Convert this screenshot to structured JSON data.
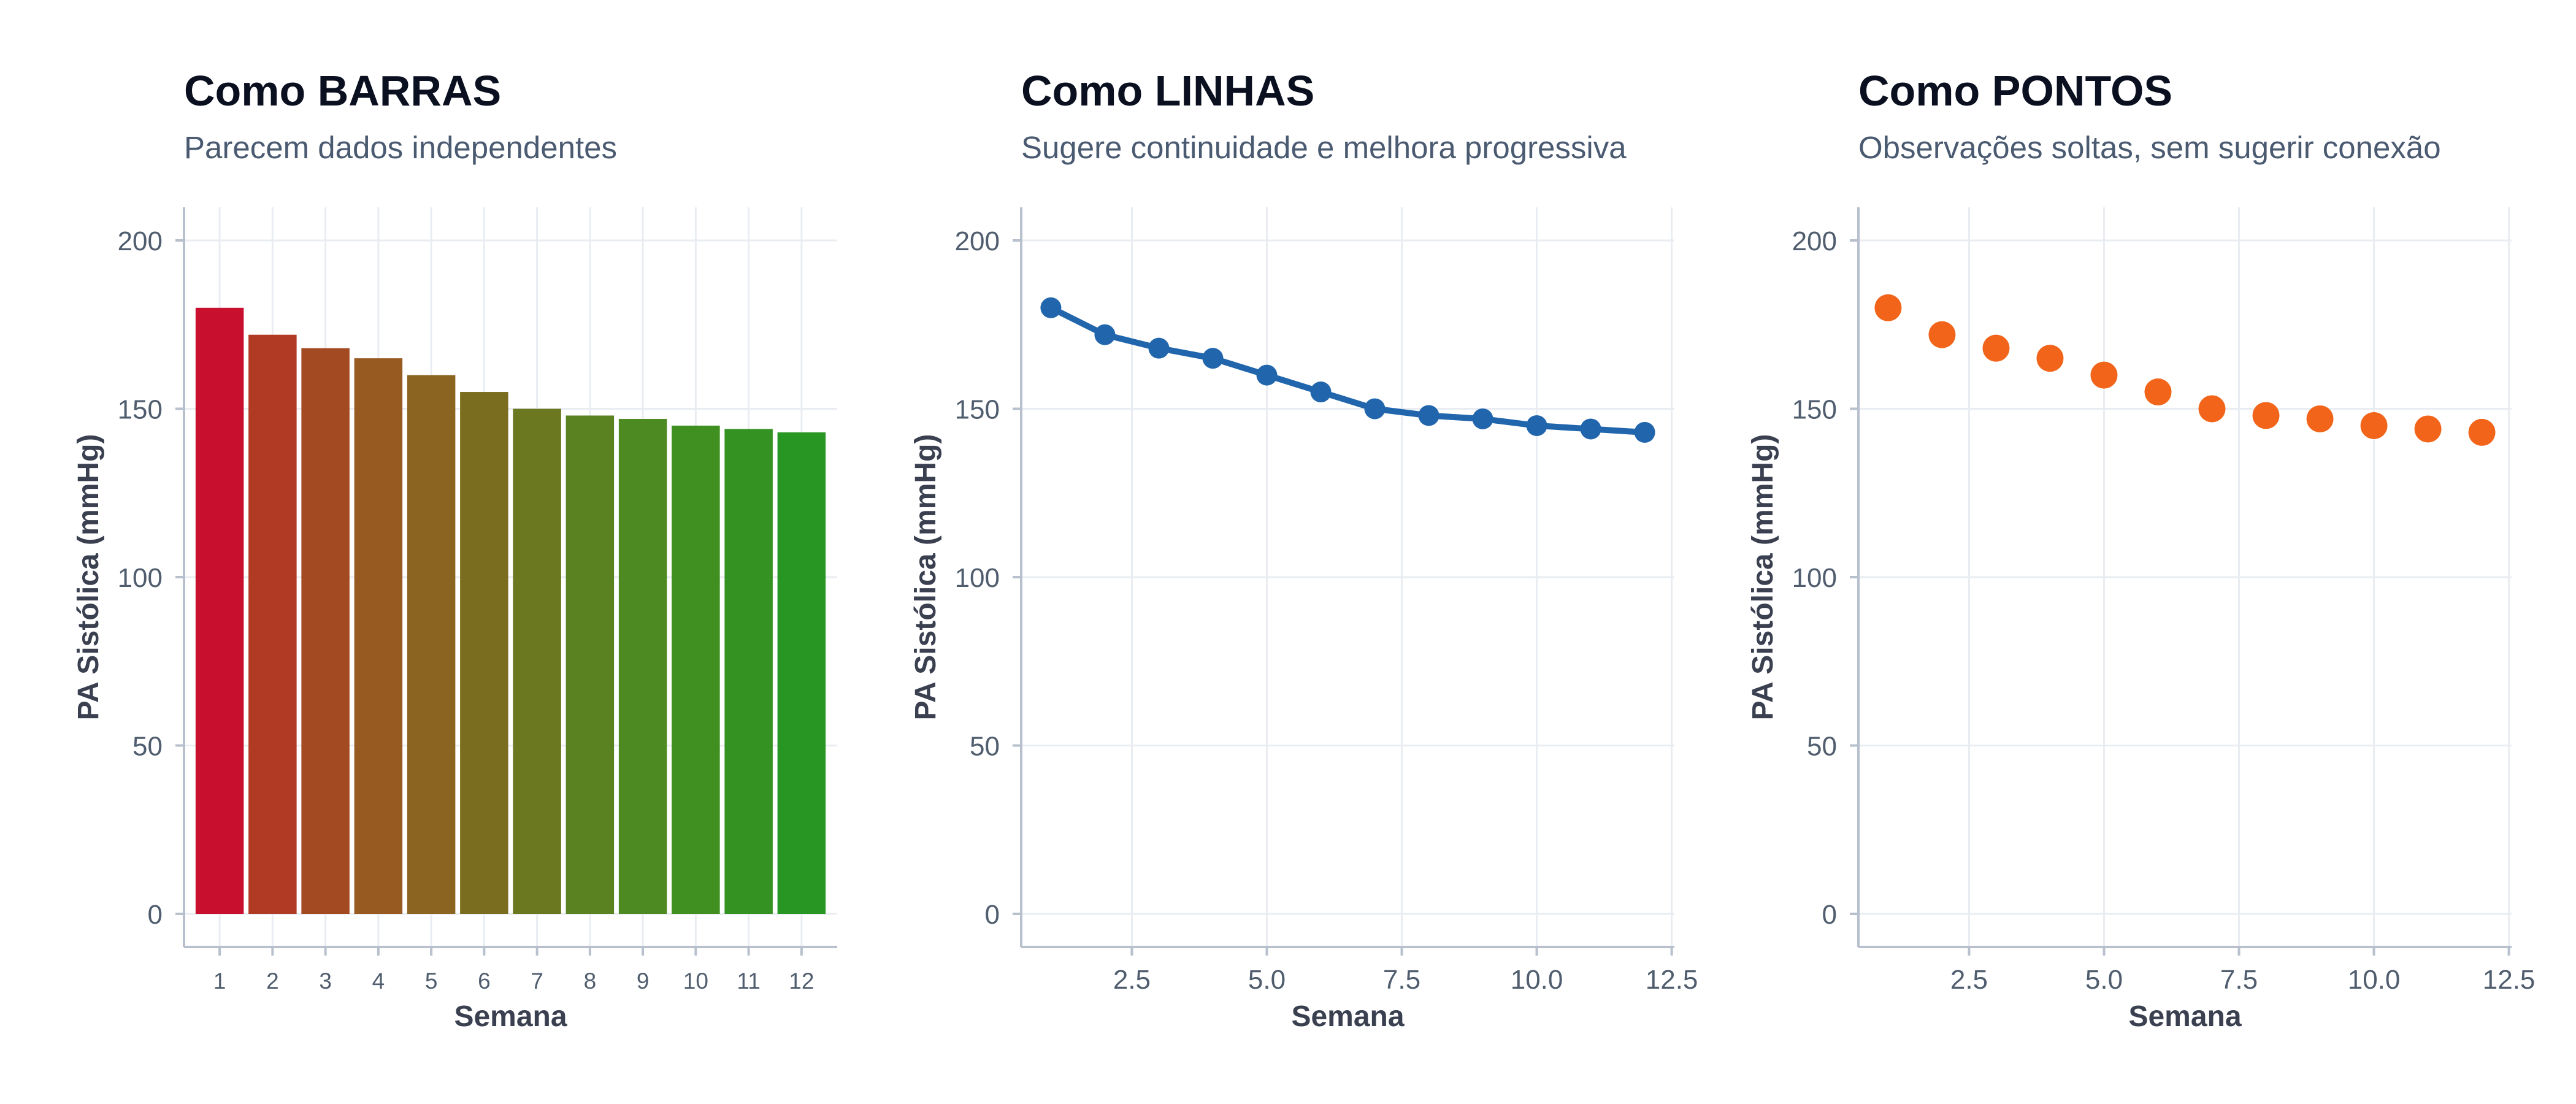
{
  "chart_data": [
    {
      "type": "bar",
      "title": "Como BARRAS",
      "subtitle": "Parecem dados independentes",
      "xlabel": "Semana",
      "ylabel": "PA Sistólica (mmHg)",
      "categories": [
        "1",
        "2",
        "3",
        "4",
        "5",
        "6",
        "7",
        "8",
        "9",
        "10",
        "11",
        "12"
      ],
      "values": [
        180,
        172,
        168,
        165,
        160,
        155,
        150,
        148,
        147,
        145,
        144,
        143
      ],
      "bar_colors": [
        "#c8102e",
        "#b13a24",
        "#a34a22",
        "#975a21",
        "#8a6420",
        "#7a6d20",
        "#6b7820",
        "#5a8220",
        "#4d8a21",
        "#3f8f21",
        "#349222",
        "#279622"
      ],
      "ylim": [
        0,
        210
      ],
      "yticks": [
        0,
        50,
        100,
        150,
        200
      ],
      "grid": true
    },
    {
      "type": "line",
      "title": "Como LINHAS",
      "subtitle": "Sugere continuidade e melhora progressiva",
      "xlabel": "Semana",
      "ylabel": "PA Sistólica (mmHg)",
      "x": [
        1,
        2,
        3,
        4,
        5,
        6,
        7,
        8,
        9,
        10,
        11,
        12
      ],
      "y": [
        180,
        172,
        168,
        165,
        160,
        155,
        150,
        148,
        147,
        145,
        144,
        143
      ],
      "color": "#2166ac",
      "xlim": [
        0.45,
        12.55
      ],
      "ylim": [
        0,
        210
      ],
      "xticks": [
        "2.5",
        "5.0",
        "7.5",
        "10.0",
        "12.5"
      ],
      "yticks": [
        0,
        50,
        100,
        150,
        200
      ],
      "grid": true
    },
    {
      "type": "scatter",
      "title": "Como PONTOS",
      "subtitle": "Observações soltas, sem sugerir conexão",
      "xlabel": "Semana",
      "ylabel": "PA Sistólica (mmHg)",
      "x": [
        1,
        2,
        3,
        4,
        5,
        6,
        7,
        8,
        9,
        10,
        11,
        12
      ],
      "y": [
        180,
        172,
        168,
        165,
        160,
        155,
        150,
        148,
        147,
        145,
        144,
        143
      ],
      "color": "#f26419",
      "xlim": [
        0.45,
        12.55
      ],
      "ylim": [
        0,
        210
      ],
      "xticks": [
        "2.5",
        "5.0",
        "7.5",
        "10.0",
        "12.5"
      ],
      "yticks": [
        0,
        50,
        100,
        150,
        200
      ],
      "grid": true
    }
  ]
}
